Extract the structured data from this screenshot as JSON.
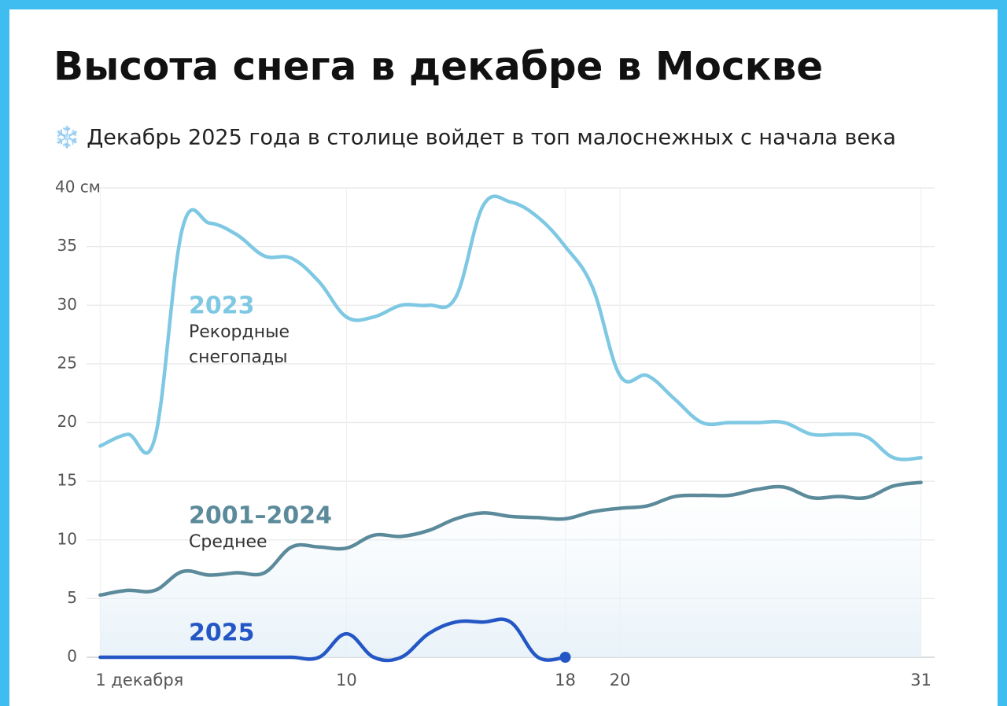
{
  "chart_data": {
    "type": "line",
    "title": "Высота снега в декабре в Москве",
    "subtitle": "❄️ Декабрь 2025 года в столице войдет в топ малоснежных с начала века",
    "x": [
      1,
      2,
      3,
      4,
      5,
      6,
      7,
      8,
      9,
      10,
      11,
      12,
      13,
      14,
      15,
      16,
      17,
      18,
      19,
      20,
      21,
      22,
      23,
      24,
      25,
      26,
      27,
      28,
      29,
      30,
      31
    ],
    "xlim": [
      0.5,
      31.5
    ],
    "xticks": [
      {
        "value": 1,
        "label": "1 декабря"
      },
      10,
      18,
      20,
      31
    ],
    "ylim": [
      0,
      40
    ],
    "yticks": [
      0,
      5,
      10,
      15,
      20,
      25,
      30,
      35,
      {
        "value": 40,
        "label": "40 см"
      }
    ],
    "grid": true,
    "series": [
      {
        "name": "2023",
        "label_lines": [
          "Рекордные",
          "снегопады"
        ],
        "color": "#7ec8e3",
        "values": [
          18,
          19,
          18.7,
          36.5,
          37,
          36,
          34.2,
          34,
          32,
          29,
          29,
          30,
          30,
          30.7,
          38.5,
          38.8,
          37.5,
          35,
          31.5,
          24,
          24,
          22,
          20,
          20,
          20,
          20,
          19,
          19,
          18.8,
          17,
          17
        ]
      },
      {
        "name": "2001–2024",
        "label_lines": [
          "Среднее"
        ],
        "color": "#5b8a9a",
        "values": [
          5.3,
          5.7,
          5.7,
          7.3,
          7,
          7.2,
          7.2,
          9.4,
          9.4,
          9.3,
          10.4,
          10.3,
          10.8,
          11.8,
          12.3,
          12,
          11.9,
          11.8,
          12.4,
          12.7,
          12.9,
          13.7,
          13.8,
          13.8,
          14.3,
          14.5,
          13.6,
          13.7,
          13.6,
          14.6,
          14.9
        ]
      },
      {
        "name": "2025",
        "color": "#2457c5",
        "values": [
          0,
          0,
          0,
          0,
          0,
          0,
          0,
          0,
          0,
          2,
          0,
          0,
          2,
          3,
          3,
          3,
          0,
          0,
          null,
          null,
          null,
          null,
          null,
          null,
          null,
          null,
          null,
          null,
          null,
          null,
          null
        ]
      }
    ]
  }
}
